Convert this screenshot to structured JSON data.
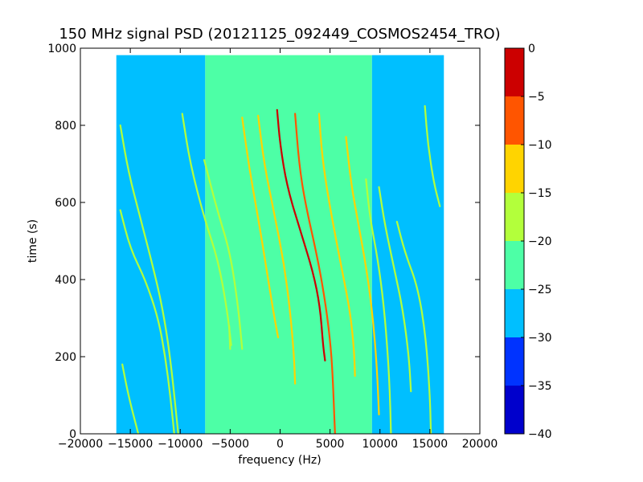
{
  "chart_data": {
    "type": "heatmap",
    "title": "150 MHz signal PSD (20121125_092449_COSMOS2454_TRO)",
    "xlabel": "frequency (Hz)",
    "ylabel": "time (s)",
    "xlim": [
      -20000,
      20000
    ],
    "ylim": [
      0,
      1000
    ],
    "xticks": [
      -20000,
      -15000,
      -10000,
      -5000,
      0,
      5000,
      10000,
      15000,
      20000
    ],
    "xtick_labels": [
      "−20000",
      "−15000",
      "−10000",
      "−5000",
      "0",
      "5000",
      "10000",
      "15000",
      "20000"
    ],
    "yticks": [
      0,
      200,
      400,
      600,
      800,
      1000
    ],
    "ytick_labels": [
      "0",
      "200",
      "400",
      "600",
      "800",
      "1000"
    ],
    "data_extent": {
      "freq_min": -16400,
      "freq_max": 16400,
      "time_min": 0,
      "time_max": 982
    },
    "bands": [
      {
        "freq_from": -16400,
        "freq_to": -7500,
        "level": -27.5
      },
      {
        "freq_from": -7500,
        "freq_to": 9200,
        "level": -22.5
      },
      {
        "freq_from": 9200,
        "freq_to": 16400,
        "level": -27.5
      }
    ],
    "traces": [
      {
        "points": [
          [
            -16000,
            580
          ],
          [
            -15000,
            480
          ],
          [
            -13500,
            400
          ],
          [
            -12200,
            300
          ],
          [
            -11500,
            200
          ],
          [
            -11000,
            100
          ],
          [
            -10600,
            0
          ]
        ],
        "level": -17.5
      },
      {
        "points": [
          [
            -16000,
            800
          ],
          [
            -15200,
            680
          ],
          [
            -14000,
            560
          ],
          [
            -12700,
            430
          ],
          [
            -11800,
            330
          ],
          [
            -11000,
            200
          ],
          [
            -10200,
            0
          ]
        ],
        "level": -17.5
      },
      {
        "points": [
          [
            -15800,
            180
          ],
          [
            -15200,
            100
          ],
          [
            -14200,
            0
          ]
        ],
        "level": -17.5
      },
      {
        "points": [
          [
            -9800,
            830
          ],
          [
            -9000,
            700
          ],
          [
            -7600,
            560
          ],
          [
            -6200,
            450
          ],
          [
            -5300,
            320
          ],
          [
            -4900,
            230
          ]
        ],
        "level": -17.5
      },
      {
        "points": [
          [
            -7600,
            710
          ],
          [
            -6300,
            580
          ],
          [
            -5000,
            470
          ],
          [
            -4200,
            330
          ],
          [
            -3800,
            220
          ]
        ],
        "level": -17.5
      },
      {
        "points": [
          [
            -5100,
            280
          ],
          [
            -5000,
            220
          ]
        ],
        "level": -17.5
      },
      {
        "points": [
          [
            -3800,
            820
          ],
          [
            -3100,
            690
          ],
          [
            -2200,
            560
          ],
          [
            -1500,
            450
          ],
          [
            -700,
            320
          ],
          [
            -200,
            250
          ]
        ],
        "level": -12.5
      },
      {
        "points": [
          [
            -2200,
            825
          ],
          [
            -1600,
            700
          ],
          [
            -500,
            560
          ],
          [
            400,
            440
          ],
          [
            1000,
            320
          ],
          [
            1400,
            200
          ],
          [
            1500,
            130
          ]
        ],
        "level": -12.5
      },
      {
        "points": [
          [
            -300,
            840
          ],
          [
            0,
            750
          ],
          [
            700,
            640
          ],
          [
            2100,
            520
          ],
          [
            3300,
            420
          ],
          [
            4000,
            330
          ],
          [
            4300,
            230
          ],
          [
            4500,
            190
          ]
        ],
        "level": -2.5
      },
      {
        "points": [
          [
            1500,
            830
          ],
          [
            1900,
            700
          ],
          [
            2500,
            600
          ],
          [
            3800,
            450
          ],
          [
            4600,
            330
          ],
          [
            5100,
            220
          ],
          [
            5300,
            130
          ],
          [
            5400,
            60
          ],
          [
            5500,
            0
          ]
        ],
        "level": -7.5
      },
      {
        "points": [
          [
            3900,
            830
          ],
          [
            4200,
            720
          ],
          [
            4900,
            600
          ],
          [
            6000,
            450
          ],
          [
            7000,
            320
          ],
          [
            7400,
            220
          ],
          [
            7500,
            150
          ]
        ],
        "level": -12.5
      },
      {
        "points": [
          [
            6600,
            770
          ],
          [
            7100,
            650
          ],
          [
            7800,
            550
          ],
          [
            8700,
            420
          ],
          [
            9300,
            300
          ],
          [
            9700,
            170
          ],
          [
            9900,
            50
          ]
        ],
        "level": -12.5
      },
      {
        "points": [
          [
            8600,
            660
          ],
          [
            9000,
            560
          ],
          [
            9800,
            450
          ],
          [
            10400,
            330
          ],
          [
            10800,
            200
          ],
          [
            11000,
            100
          ],
          [
            11100,
            0
          ]
        ],
        "level": -17.5
      },
      {
        "points": [
          [
            9900,
            640
          ],
          [
            10500,
            540
          ],
          [
            11500,
            420
          ],
          [
            12300,
            320
          ],
          [
            12900,
            200
          ],
          [
            13100,
            110
          ]
        ],
        "level": -17.5
      },
      {
        "points": [
          [
            11700,
            550
          ],
          [
            12500,
            470
          ],
          [
            13800,
            380
          ],
          [
            14600,
            250
          ],
          [
            15000,
            100
          ],
          [
            15100,
            0
          ]
        ],
        "level": -17.5
      },
      {
        "points": [
          [
            14500,
            850
          ],
          [
            14800,
            750
          ],
          [
            15400,
            650
          ],
          [
            16000,
            590
          ]
        ],
        "level": -17.5
      }
    ],
    "colorbar": {
      "levels": [
        -40,
        -35,
        -30,
        -25,
        -20,
        -15,
        -10,
        -5,
        0
      ],
      "tick_labels": [
        "−40",
        "−35",
        "−30",
        "−25",
        "−20",
        "−15",
        "−10",
        "−5",
        "0"
      ],
      "colors": [
        "#0000cc",
        "#0033ff",
        "#00bfff",
        "#4dffa6",
        "#b3ff3b",
        "#ffd400",
        "#ff5500",
        "#cc0000"
      ]
    }
  }
}
